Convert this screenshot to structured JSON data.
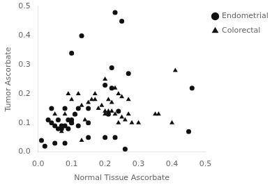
{
  "chart_data": {
    "type": "scatter",
    "xlabel": "Normal Tissue Ascorbate",
    "ylabel": "Tumor Ascorbate",
    "series": [
      {
        "name": "Endometrial",
        "color": "#111111",
        "marker": "circle",
        "x": [
          0.01,
          0.02,
          0.03,
          0.04,
          0.04,
          0.05,
          0.05,
          0.06,
          0.06,
          0.07,
          0.07,
          0.08,
          0.08,
          0.08,
          0.09,
          0.09,
          0.1,
          0.1,
          0.1,
          0.1,
          0.11,
          0.12,
          0.12,
          0.13,
          0.15,
          0.15,
          0.15,
          0.2,
          0.2,
          0.21,
          0.22,
          0.22,
          0.23,
          0.23,
          0.24,
          0.25,
          0.26,
          0.27,
          0.45,
          0.46
        ],
        "values": [
          0.04,
          0.02,
          0.11,
          0.1,
          0.15,
          0.09,
          0.03,
          0.08,
          0.11,
          0.08,
          0.09,
          0.09,
          0.15,
          0.03,
          0.11,
          0.08,
          0.11,
          0.1,
          0.1,
          0.34,
          0.13,
          0.09,
          0.15,
          0.4,
          0.1,
          0.15,
          0.05,
          0.05,
          0.23,
          0.13,
          0.29,
          0.22,
          0.48,
          0.05,
          0.14,
          0.45,
          0.01,
          0.27,
          0.07,
          0.22
        ]
      },
      {
        "name": "Colorectal",
        "color": "#111111",
        "marker": "triangle",
        "x": [
          0.05,
          0.07,
          0.08,
          0.09,
          0.1,
          0.1,
          0.11,
          0.12,
          0.13,
          0.13,
          0.14,
          0.15,
          0.16,
          0.17,
          0.17,
          0.18,
          0.19,
          0.2,
          0.2,
          0.2,
          0.21,
          0.21,
          0.22,
          0.22,
          0.23,
          0.23,
          0.24,
          0.24,
          0.25,
          0.25,
          0.26,
          0.27,
          0.27,
          0.28,
          0.3,
          0.35,
          0.36,
          0.4,
          0.41
        ],
        "values": [
          0.13,
          0.07,
          0.13,
          0.2,
          0.18,
          0.11,
          0.13,
          0.2,
          0.16,
          0.04,
          0.11,
          0.17,
          0.18,
          0.18,
          0.2,
          0.15,
          0.16,
          0.13,
          0.14,
          0.25,
          0.18,
          0.14,
          0.14,
          0.17,
          0.13,
          0.22,
          0.1,
          0.2,
          0.12,
          0.19,
          0.11,
          0.13,
          0.18,
          0.1,
          0.1,
          0.13,
          0.13,
          0.1,
          0.28
        ]
      }
    ],
    "xlim": [
      0,
      0.5
    ],
    "ylim": [
      0,
      0.5
    ],
    "xticks": [
      {
        "value": 0,
        "label": "0.0"
      },
      0.1,
      0.2,
      0.3,
      0.4,
      0.5
    ],
    "yticks": [
      {
        "value": 0,
        "label": "0.0"
      },
      0.1,
      0.2,
      0.3,
      0.4,
      0.5
    ],
    "grid": false,
    "legend": "right"
  }
}
